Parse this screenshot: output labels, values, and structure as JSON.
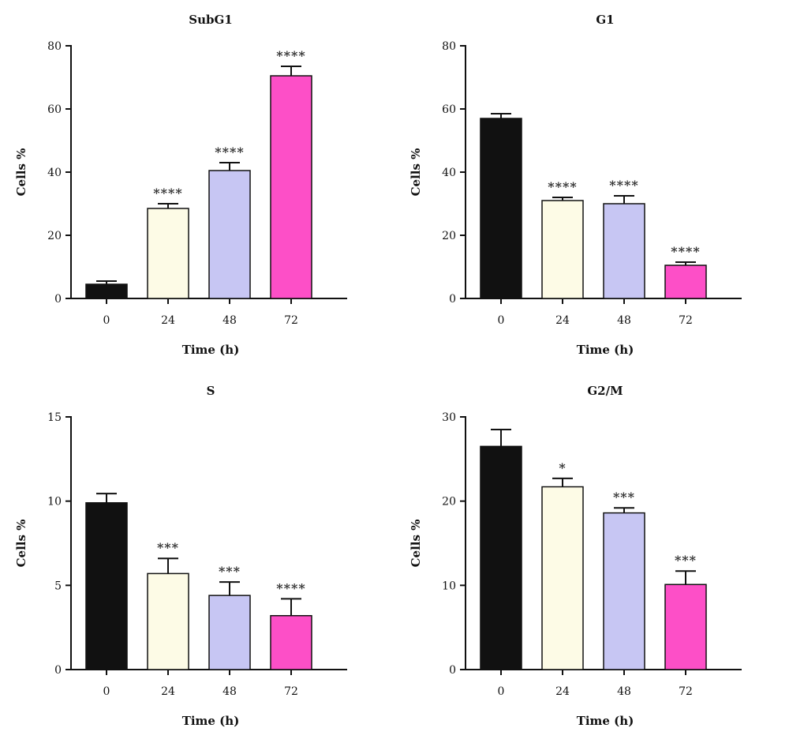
{
  "chart_data": [
    {
      "type": "bar",
      "title": "SubG1",
      "xlabel": "Time (h)",
      "ylabel": "Cells %",
      "categories": [
        "0",
        "24",
        "48",
        "72"
      ],
      "values": [
        4.5,
        28.5,
        40.5,
        70.5
      ],
      "errors": [
        1.0,
        1.5,
        2.5,
        3.0
      ],
      "significance": [
        "",
        "****",
        "****",
        "****"
      ],
      "ylim": [
        0,
        80
      ],
      "yticks": [
        0,
        20,
        40,
        60,
        80
      ],
      "colors": [
        "#111111",
        "#fdfbe6",
        "#c7c6f3",
        "#fd4fc7"
      ]
    },
    {
      "type": "bar",
      "title": "G1",
      "xlabel": "Time (h)",
      "ylabel": "Cells %",
      "categories": [
        "0",
        "24",
        "48",
        "72"
      ],
      "values": [
        57,
        31,
        30,
        10.5
      ],
      "errors": [
        1.5,
        1.0,
        2.5,
        1.0
      ],
      "significance": [
        "",
        "****",
        "****",
        "****"
      ],
      "ylim": [
        0,
        80
      ],
      "yticks": [
        0,
        20,
        40,
        60,
        80
      ],
      "colors": [
        "#111111",
        "#fdfbe6",
        "#c7c6f3",
        "#fd4fc7"
      ]
    },
    {
      "type": "bar",
      "title": "S",
      "xlabel": "Time (h)",
      "ylabel": "Cells %",
      "categories": [
        "0",
        "24",
        "48",
        "72"
      ],
      "values": [
        9.9,
        5.7,
        4.4,
        3.2
      ],
      "errors": [
        0.55,
        0.9,
        0.8,
        1.0
      ],
      "significance": [
        "",
        "***",
        "***",
        "****"
      ],
      "ylim": [
        0,
        15
      ],
      "yticks": [
        0,
        5,
        10,
        15
      ],
      "colors": [
        "#111111",
        "#fdfbe6",
        "#c7c6f3",
        "#fd4fc7"
      ]
    },
    {
      "type": "bar",
      "title": "G2/M",
      "xlabel": "Time (h)",
      "ylabel": "Cells %",
      "categories": [
        "0",
        "24",
        "48",
        "72"
      ],
      "values": [
        26.5,
        21.7,
        18.6,
        10.1
      ],
      "errors": [
        2.0,
        1.0,
        0.6,
        1.6
      ],
      "significance": [
        "",
        "*",
        "***",
        "***"
      ],
      "ylim": [
        0,
        30
      ],
      "yticks": [
        0,
        10,
        20,
        30
      ],
      "colors": [
        "#111111",
        "#fdfbe6",
        "#c7c6f3",
        "#fd4fc7"
      ]
    }
  ]
}
